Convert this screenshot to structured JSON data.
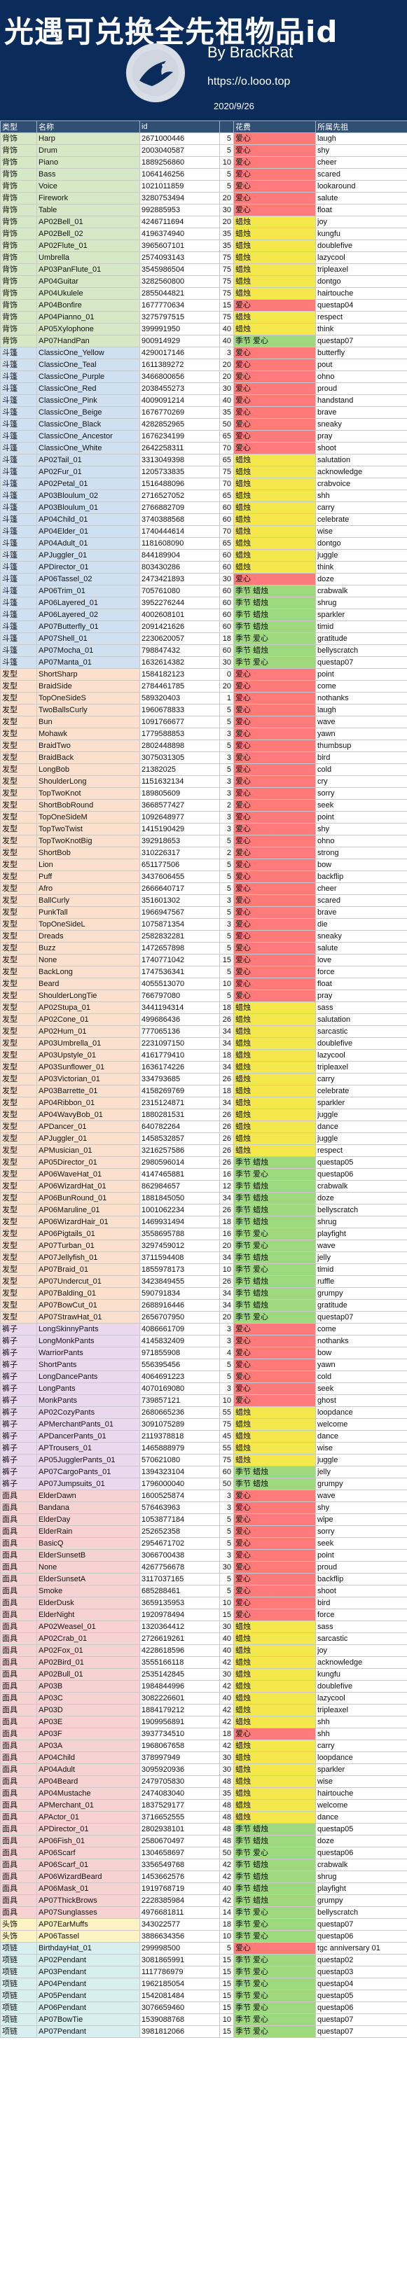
{
  "header": {
    "title": "光遇可兑换全先祖物品id",
    "byline": "By BrackRat",
    "url": "https://o.looo.top",
    "date": "2020/9/26"
  },
  "columns": [
    "类型",
    "名称",
    "id",
    "",
    "花费",
    "所属先祖"
  ],
  "rows": [
    [
      "背饰",
      "Harp",
      "2671000446",
      "5",
      "爱心",
      "laugh"
    ],
    [
      "背饰",
      "Drum",
      "2003040587",
      "5",
      "爱心",
      "shy"
    ],
    [
      "背饰",
      "Piano",
      "1889256860",
      "10",
      "爱心",
      "cheer"
    ],
    [
      "背饰",
      "Bass",
      "1064146256",
      "5",
      "爱心",
      "scared"
    ],
    [
      "背饰",
      "Voice",
      "1021011859",
      "5",
      "爱心",
      "lookaround"
    ],
    [
      "背饰",
      "Firework",
      "3280753494",
      "20",
      "爱心",
      "salute"
    ],
    [
      "背饰",
      "Table",
      "992885953",
      "30",
      "爱心",
      "float"
    ],
    [
      "背饰",
      "AP02Bell_01",
      "4246711694",
      "20",
      "蜡烛",
      "joy"
    ],
    [
      "背饰",
      "AP02Bell_02",
      "4196374940",
      "35",
      "蜡烛",
      "kungfu"
    ],
    [
      "背饰",
      "AP02Flute_01",
      "3965607101",
      "35",
      "蜡烛",
      "doublefive"
    ],
    [
      "背饰",
      "Umbrella",
      "2574093143",
      "75",
      "蜡烛",
      "lazycool"
    ],
    [
      "背饰",
      "AP03PanFlute_01",
      "3545986504",
      "75",
      "蜡烛",
      "tripleaxel"
    ],
    [
      "背饰",
      "AP04Guitar",
      "3282560800",
      "75",
      "蜡烛",
      "dontgo"
    ],
    [
      "背饰",
      "AP04Ukulele",
      "2855044821",
      "75",
      "蜡烛",
      "hairtouche"
    ],
    [
      "背饰",
      "AP04Bonfire",
      "1677770634",
      "15",
      "爱心",
      "questap04"
    ],
    [
      "背饰",
      "AP04Pianno_01",
      "3275797515",
      "75",
      "蜡烛",
      "respect"
    ],
    [
      "背饰",
      "AP05Xylophone",
      "399991950",
      "40",
      "蜡烛",
      "think"
    ],
    [
      "背饰",
      "AP07HandPan",
      "900914929",
      "40",
      "季节 爱心",
      "questap07"
    ],
    [
      "斗篷",
      "ClassicOne_Yellow",
      "4290017146",
      "3",
      "爱心",
      "butterfly"
    ],
    [
      "斗篷",
      "ClassicOne_Teal",
      "1611389272",
      "20",
      "爱心",
      "pout"
    ],
    [
      "斗篷",
      "ClassicOne_Purple",
      "3466800656",
      "20",
      "爱心",
      "ohno"
    ],
    [
      "斗篷",
      "ClassicOne_Red",
      "2038455273",
      "30",
      "爱心",
      "proud"
    ],
    [
      "斗篷",
      "ClassicOne_Pink",
      "4009091214",
      "40",
      "爱心",
      "handstand"
    ],
    [
      "斗篷",
      "ClassicOne_Beige",
      "1676770269",
      "35",
      "爱心",
      "brave"
    ],
    [
      "斗篷",
      "ClassicOne_Black",
      "4282852965",
      "50",
      "爱心",
      "sneaky"
    ],
    [
      "斗篷",
      "ClassicOne_Ancestor",
      "1676234199",
      "65",
      "爱心",
      "pray"
    ],
    [
      "斗篷",
      "ClassicOne_White",
      "2642258311",
      "70",
      "爱心",
      "shoot"
    ],
    [
      "斗篷",
      "AP02Tail_01",
      "3313049398",
      "65",
      "蜡烛",
      "salutation"
    ],
    [
      "斗篷",
      "AP02Fur_01",
      "1205733835",
      "75",
      "蜡烛",
      "acknowledge"
    ],
    [
      "斗篷",
      "AP02Petal_01",
      "1516488096",
      "70",
      "蜡烛",
      "crabvoice"
    ],
    [
      "斗篷",
      "AP03Bloulum_02",
      "2716527052",
      "65",
      "蜡烛",
      "shh"
    ],
    [
      "斗篷",
      "AP03Bloulum_01",
      "2766882709",
      "60",
      "蜡烛",
      "carry"
    ],
    [
      "斗篷",
      "AP04Child_01",
      "3740388568",
      "60",
      "蜡烛",
      "celebrate"
    ],
    [
      "斗篷",
      "AP04Elder_01",
      "1740444614",
      "70",
      "蜡烛",
      "wise"
    ],
    [
      "斗篷",
      "AP04Adult_01",
      "1181608090",
      "65",
      "蜡烛",
      "dontgo"
    ],
    [
      "斗篷",
      "APJuggler_01",
      "844189904",
      "60",
      "蜡烛",
      "juggle"
    ],
    [
      "斗篷",
      "APDirector_01",
      "803430286",
      "60",
      "蜡烛",
      "think"
    ],
    [
      "斗篷",
      "AP06Tassel_02",
      "2473421893",
      "30",
      "爱心",
      "doze"
    ],
    [
      "斗篷",
      "AP06Trim_01",
      "705761080",
      "60",
      "季节 蜡烛",
      "crabwalk"
    ],
    [
      "斗篷",
      "AP06Layered_01",
      "3952276244",
      "60",
      "季节 蜡烛",
      "shrug"
    ],
    [
      "斗篷",
      "AP06Layered_02",
      "4002608101",
      "60",
      "季节 蜡烛",
      "sparkler"
    ],
    [
      "斗篷",
      "AP07Butterfly_01",
      "2091421626",
      "60",
      "季节 蜡烛",
      "timid"
    ],
    [
      "斗篷",
      "AP07Shell_01",
      "2230620057",
      "18",
      "季节 爱心",
      "gratitude"
    ],
    [
      "斗篷",
      "AP07Mocha_01",
      "798847432",
      "60",
      "季节 蜡烛",
      "bellyscratch"
    ],
    [
      "斗篷",
      "AP07Manta_01",
      "1632614382",
      "30",
      "季节 爱心",
      "questap07"
    ],
    [
      "发型",
      "ShortSharp",
      "1584182123",
      "0",
      "爱心",
      "point"
    ],
    [
      "发型",
      "BraidSide",
      "2784461785",
      "20",
      "爱心",
      "come"
    ],
    [
      "发型",
      "TopOneSideS",
      "589320403",
      "1",
      "爱心",
      "nothanks"
    ],
    [
      "发型",
      "TwoBallsCurly",
      "1960678833",
      "5",
      "爱心",
      "laugh"
    ],
    [
      "发型",
      "Bun",
      "1091766677",
      "5",
      "爱心",
      "wave"
    ],
    [
      "发型",
      "Mohawk",
      "1779588853",
      "3",
      "爱心",
      "yawn"
    ],
    [
      "发型",
      "BraidTwo",
      "2802448898",
      "5",
      "爱心",
      "thumbsup"
    ],
    [
      "发型",
      "BraidBack",
      "3075031305",
      "3",
      "爱心",
      "bird"
    ],
    [
      "发型",
      "LongBob",
      "21382025",
      "5",
      "爱心",
      "cold"
    ],
    [
      "发型",
      "ShoulderLong",
      "1151632134",
      "3",
      "爱心",
      "cry"
    ],
    [
      "发型",
      "TopTwoKnot",
      "189805609",
      "3",
      "爱心",
      "sorry"
    ],
    [
      "发型",
      "ShortBobRound",
      "3668577427",
      "2",
      "爱心",
      "seek"
    ],
    [
      "发型",
      "TopOneSideM",
      "1092648977",
      "3",
      "爱心",
      "point"
    ],
    [
      "发型",
      "TopTwoTwist",
      "1415190429",
      "3",
      "爱心",
      "shy"
    ],
    [
      "发型",
      "TopTwoKnotBig",
      "392918653",
      "5",
      "爱心",
      "ohno"
    ],
    [
      "发型",
      "ShortBob",
      "310226317",
      "2",
      "爱心",
      "strong"
    ],
    [
      "发型",
      "Lion",
      "651177506",
      "5",
      "爱心",
      "bow"
    ],
    [
      "发型",
      "Puff",
      "3437606455",
      "5",
      "爱心",
      "backflip"
    ],
    [
      "发型",
      "Afro",
      "2666640717",
      "5",
      "爱心",
      "cheer"
    ],
    [
      "发型",
      "BallCurly",
      "351601302",
      "3",
      "爱心",
      "scared"
    ],
    [
      "发型",
      "PunkTall",
      "1966947567",
      "5",
      "爱心",
      "brave"
    ],
    [
      "发型",
      "TopOneSideL",
      "1075871354",
      "3",
      "爱心",
      "die"
    ],
    [
      "发型",
      "Dreads",
      "2582832281",
      "5",
      "爱心",
      "sneaky"
    ],
    [
      "发型",
      "Buzz",
      "1472657898",
      "5",
      "爱心",
      "salute"
    ],
    [
      "发型",
      "None",
      "1740771042",
      "15",
      "爱心",
      "love"
    ],
    [
      "发型",
      "BackLong",
      "1747536341",
      "5",
      "爱心",
      "force"
    ],
    [
      "发型",
      "Beard",
      "4055513070",
      "10",
      "爱心",
      "float"
    ],
    [
      "发型",
      "ShoulderLongTie",
      "766797080",
      "5",
      "爱心",
      "pray"
    ],
    [
      "发型",
      "AP02Stupa_01",
      "3441194314",
      "18",
      "蜡烛",
      "sass"
    ],
    [
      "发型",
      "AP02Cone_01",
      "499686436",
      "26",
      "蜡烛",
      "salutation"
    ],
    [
      "发型",
      "AP02Hum_01",
      "777065136",
      "34",
      "蜡烛",
      "sarcastic"
    ],
    [
      "发型",
      "AP03Umbrella_01",
      "2231097150",
      "34",
      "蜡烛",
      "doublefive"
    ],
    [
      "发型",
      "AP03Upstyle_01",
      "4161779410",
      "18",
      "蜡烛",
      "lazycool"
    ],
    [
      "发型",
      "AP03Sunflower_01",
      "1636174226",
      "34",
      "蜡烛",
      "tripleaxel"
    ],
    [
      "发型",
      "AP03Victorian_01",
      "334793685",
      "26",
      "蜡烛",
      "carry"
    ],
    [
      "发型",
      "AP03Barrette_01",
      "4158269769",
      "18",
      "蜡烛",
      "celebrate"
    ],
    [
      "发型",
      "AP04Ribbon_01",
      "2315124871",
      "34",
      "蜡烛",
      "sparkler"
    ],
    [
      "发型",
      "AP04WavyBob_01",
      "1880281531",
      "26",
      "蜡烛",
      "juggle"
    ],
    [
      "发型",
      "APDancer_01",
      "640782264",
      "26",
      "蜡烛",
      "dance"
    ],
    [
      "发型",
      "APJuggler_01",
      "1458532857",
      "26",
      "蜡烛",
      "juggle"
    ],
    [
      "发型",
      "APMusician_01",
      "3216257586",
      "26",
      "蜡烛",
      "respect"
    ],
    [
      "发型",
      "AP05Director_01",
      "2980596014",
      "26",
      "季节 蜡烛",
      "questap05"
    ],
    [
      "发型",
      "AP06WaveHat_01",
      "4147465881",
      "16",
      "季节 爱心",
      "questap06"
    ],
    [
      "发型",
      "AP06WizardHat_01",
      "862984657",
      "12",
      "季节 蜡烛",
      "crabwalk"
    ],
    [
      "发型",
      "AP06BunRound_01",
      "1881845050",
      "34",
      "季节 蜡烛",
      "doze"
    ],
    [
      "发型",
      "AP06Maruline_01",
      "1001062234",
      "26",
      "季节 蜡烛",
      "bellyscratch"
    ],
    [
      "发型",
      "AP06WizardHair_01",
      "1469931494",
      "18",
      "季节 蜡烛",
      "shrug"
    ],
    [
      "发型",
      "AP06Pigtails_01",
      "3558695788",
      "16",
      "季节 爱心",
      "playfight"
    ],
    [
      "发型",
      "AP07Turban_01",
      "3297459012",
      "20",
      "季节 爱心",
      "wave"
    ],
    [
      "发型",
      "AP07Jellyfish_01",
      "3711594408",
      "34",
      "季节 蜡烛",
      "jelly"
    ],
    [
      "发型",
      "AP07Braid_01",
      "1855978173",
      "10",
      "季节 爱心",
      "timid"
    ],
    [
      "发型",
      "AP07Undercut_01",
      "3423849455",
      "26",
      "季节 蜡烛",
      "ruffle"
    ],
    [
      "发型",
      "AP07Balding_01",
      "590791834",
      "34",
      "季节 蜡烛",
      "grumpy"
    ],
    [
      "发型",
      "AP07BowCut_01",
      "2688916446",
      "34",
      "季节 蜡烛",
      "gratitude"
    ],
    [
      "发型",
      "AP07StrawHat_01",
      "2656707950",
      "20",
      "季节 爱心",
      "questap07"
    ],
    [
      "裤子",
      "LongSkinnyPants",
      "4086661709",
      "3",
      "爱心",
      "come"
    ],
    [
      "裤子",
      "LongMonkPants",
      "4145832409",
      "3",
      "爱心",
      "nothanks"
    ],
    [
      "裤子",
      "WarriorPants",
      "971855908",
      "4",
      "爱心",
      "bow"
    ],
    [
      "裤子",
      "ShortPants",
      "556395456",
      "5",
      "爱心",
      "yawn"
    ],
    [
      "裤子",
      "LongDancePants",
      "4064691223",
      "5",
      "爱心",
      "cold"
    ],
    [
      "裤子",
      "LongPants",
      "4070169080",
      "3",
      "爱心",
      "seek"
    ],
    [
      "裤子",
      "MonkPants",
      "739857121",
      "10",
      "爱心",
      "ghost"
    ],
    [
      "裤子",
      "AP02CozyPants",
      "2680665236",
      "55",
      "蜡烛",
      "loopdance"
    ],
    [
      "裤子",
      "APMerchantPants_01",
      "3091075289",
      "75",
      "蜡烛",
      "welcome"
    ],
    [
      "裤子",
      "APDancerPants_01",
      "2119378818",
      "45",
      "蜡烛",
      "dance"
    ],
    [
      "裤子",
      "APTrousers_01",
      "1465888979",
      "55",
      "蜡烛",
      "wise"
    ],
    [
      "裤子",
      "AP05JugglerPants_01",
      "570621080",
      "75",
      "蜡烛",
      "juggle"
    ],
    [
      "裤子",
      "AP07CargoPants_01",
      "1394323104",
      "60",
      "季节 蜡烛",
      "jelly"
    ],
    [
      "裤子",
      "AP07Jumpsuits_01",
      "1796000040",
      "50",
      "季节 蜡烛",
      "grumpy"
    ],
    [
      "面具",
      "ElderDawn",
      "1600525874",
      "3",
      "爱心",
      "wave"
    ],
    [
      "面具",
      "Bandana",
      "576463963",
      "3",
      "爱心",
      "shy"
    ],
    [
      "面具",
      "ElderDay",
      "1053877184",
      "5",
      "爱心",
      "wipe"
    ],
    [
      "面具",
      "ElderRain",
      "252652358",
      "5",
      "爱心",
      "sorry"
    ],
    [
      "面具",
      "BasicQ",
      "2954671702",
      "5",
      "爱心",
      "seek"
    ],
    [
      "面具",
      "ElderSunsetB",
      "3066700438",
      "3",
      "爱心",
      "point"
    ],
    [
      "面具",
      "None",
      "4267756678",
      "30",
      "爱心",
      "proud"
    ],
    [
      "面具",
      "ElderSunsetA",
      "3117037165",
      "5",
      "爱心",
      "backflip"
    ],
    [
      "面具",
      "Smoke",
      "685288461",
      "5",
      "爱心",
      "shoot"
    ],
    [
      "面具",
      "ElderDusk",
      "3659135953",
      "10",
      "爱心",
      "bird"
    ],
    [
      "面具",
      "ElderNight",
      "1920978494",
      "15",
      "爱心",
      "force"
    ],
    [
      "面具",
      "AP02Weasel_01",
      "1320364412",
      "30",
      "蜡烛",
      "sass"
    ],
    [
      "面具",
      "AP02Crab_01",
      "2726619261",
      "40",
      "蜡烛",
      "sarcastic"
    ],
    [
      "面具",
      "AP02Fox_01",
      "4228618596",
      "40",
      "蜡烛",
      "joy"
    ],
    [
      "面具",
      "AP02Bird_01",
      "3555166118",
      "42",
      "蜡烛",
      "acknowledge"
    ],
    [
      "面具",
      "AP02Bull_01",
      "2535142845",
      "30",
      "蜡烛",
      "kungfu"
    ],
    [
      "面具",
      "AP03B",
      "1984844996",
      "42",
      "蜡烛",
      "doublefive"
    ],
    [
      "面具",
      "AP03C",
      "3082226601",
      "40",
      "蜡烛",
      "lazycool"
    ],
    [
      "面具",
      "AP03D",
      "1884179212",
      "42",
      "蜡烛",
      "tripleaxel"
    ],
    [
      "面具",
      "AP03E",
      "1909956891",
      "42",
      "蜡烛",
      "shh"
    ],
    [
      "面具",
      "AP03F",
      "3937734510",
      "18",
      "爱心",
      "shh"
    ],
    [
      "面具",
      "AP03A",
      "1968067658",
      "42",
      "蜡烛",
      "carry"
    ],
    [
      "面具",
      "AP04Child",
      "378997949",
      "30",
      "蜡烛",
      "loopdance"
    ],
    [
      "面具",
      "AP04Adult",
      "3095920936",
      "30",
      "蜡烛",
      "sparkler"
    ],
    [
      "面具",
      "AP04Beard",
      "2479705830",
      "48",
      "蜡烛",
      "wise"
    ],
    [
      "面具",
      "AP04Mustache",
      "2474083040",
      "35",
      "蜡烛",
      "hairtouche"
    ],
    [
      "面具",
      "APMerchant_01",
      "1837529177",
      "48",
      "蜡烛",
      "welcome"
    ],
    [
      "面具",
      "APActor_01",
      "3716652555",
      "48",
      "蜡烛",
      "dance"
    ],
    [
      "面具",
      "APDirector_01",
      "2802938101",
      "48",
      "季节 蜡烛",
      "questap05"
    ],
    [
      "面具",
      "AP06Fish_01",
      "2580670497",
      "48",
      "季节 蜡烛",
      "doze"
    ],
    [
      "面具",
      "AP06Scarf",
      "1304658697",
      "50",
      "季节 爱心",
      "questap06"
    ],
    [
      "面具",
      "AP06Scarf_01",
      "3356549768",
      "42",
      "季节 蜡烛",
      "crabwalk"
    ],
    [
      "面具",
      "AP06WizardBeard",
      "1453662576",
      "42",
      "季节 蜡烛",
      "shrug"
    ],
    [
      "面具",
      "AP06Mask_01",
      "1919768719",
      "40",
      "季节 蜡烛",
      "playfight"
    ],
    [
      "面具",
      "AP07ThickBrows",
      "2228385984",
      "42",
      "季节 蜡烛",
      "grumpy"
    ],
    [
      "面具",
      "AP07Sunglasses",
      "4976681811",
      "14",
      "季节 爱心",
      "bellyscratch"
    ],
    [
      "头饰",
      "AP07EarMuffs",
      "343022577",
      "18",
      "季节 爱心",
      "questap07"
    ],
    [
      "头饰",
      "AP06Tassel",
      "3886634356",
      "10",
      "季节 爱心",
      "questap06"
    ],
    [
      "项链",
      "BirthdayHat_01",
      "299998500",
      "5",
      "爱心",
      "tgc anniversary 01"
    ],
    [
      "项链",
      "AP02Pendant",
      "3081865991",
      "15",
      "季节 爱心",
      "questap02"
    ],
    [
      "项链",
      "AP03Pendant",
      "1117786979",
      "15",
      "季节 爱心",
      "questap03"
    ],
    [
      "项链",
      "AP04Pendant",
      "1962185054",
      "15",
      "季节 爱心",
      "questap04"
    ],
    [
      "项链",
      "AP05Pendant",
      "1542081484",
      "15",
      "季节 爱心",
      "questap05"
    ],
    [
      "项链",
      "AP06Pendant",
      "3076659460",
      "15",
      "季节 爱心",
      "questap06"
    ],
    [
      "项链",
      "AP07BowTie",
      "1539088768",
      "10",
      "季节 爱心",
      "questap07"
    ],
    [
      "项链",
      "AP07Pendant",
      "3981812066",
      "15",
      "季节 爱心",
      "questap07"
    ]
  ],
  "categoryStyles": {
    "背饰": {
      "class": "cat-beishi",
      "color": "#d7e8c6"
    },
    "斗篷": {
      "class": "cat-doupeng",
      "color": "#cfe0f1"
    },
    "发型": {
      "class": "cat-faxing",
      "color": "#fbe1cd"
    },
    "裤子": {
      "class": "cat-kuzi",
      "color": "#ead8ee"
    },
    "面具": {
      "class": "cat-mianju",
      "color": "#f7d2d2"
    },
    "头饰": {
      "class": "cat-toushi",
      "color": "#fcf3c4"
    },
    "项链": {
      "class": "cat-biaoqing",
      "color": "#d8eff0"
    }
  },
  "costColors": {
    "爱心": "#ff7a7a",
    "蜡烛": "#f4e84d",
    "季节": "#9ed97f"
  },
  "icons": {
    "logo": "bird-silhouette-icon"
  }
}
